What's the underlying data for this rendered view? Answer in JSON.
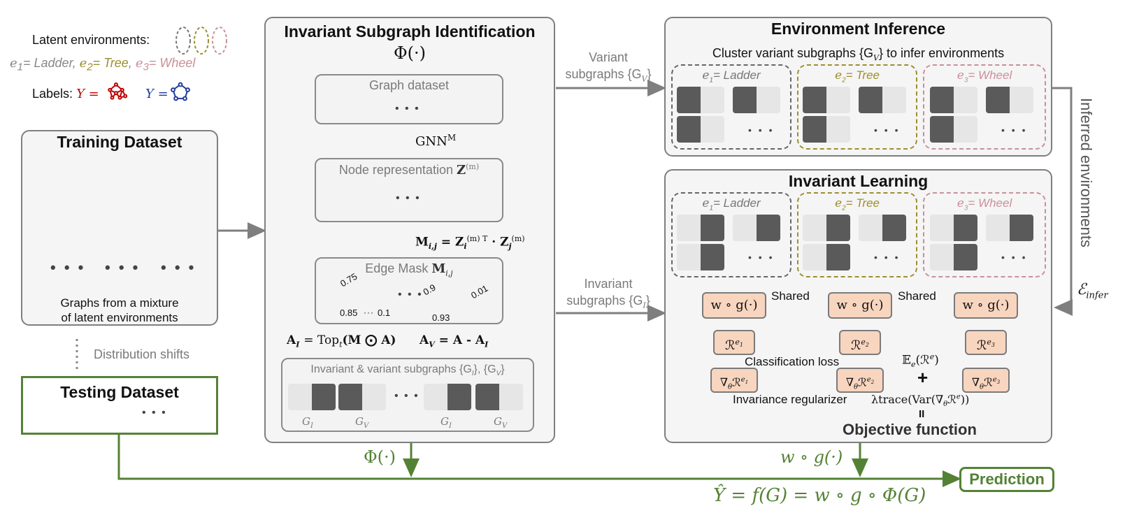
{
  "colors": {
    "red": "#c00000",
    "gray": "#888888",
    "blue": "#1f3c99",
    "olive": "#9c8f2e",
    "pink": "#c9909a",
    "green": "#548235",
    "box_fill": "#f8d5bf"
  },
  "legend": {
    "latent_label": "Latent environments:",
    "env1_var": "e",
    "env1_sub": "1",
    "env1_name": "= Ladder",
    "env2_var": "e",
    "env2_sub": "2",
    "env2_name": "= Tree",
    "env3_var": "e",
    "env3_sub": "3",
    "env3_name": "= Wheel",
    "env_sep": ",",
    "labels_label": "Labels:",
    "label_y1": "Y =",
    "label_y2": "Y ="
  },
  "training": {
    "title": "Training Dataset",
    "caption_line1": "Graphs from a mixture",
    "caption_line2": "of latent environments",
    "dots": "• • •"
  },
  "distribution_shifts": "Distribution shifts",
  "testing": {
    "title": "Testing Dataset",
    "dots": "• • •"
  },
  "isi": {
    "title": "Invariant Subgraph Identification",
    "phi": "Φ(·)",
    "graph_dataset": "Graph dataset",
    "gnn": "GNN",
    "gnn_sup": "M",
    "node_rep": "Node representation",
    "node_rep_sym": "Z",
    "node_rep_sup": "(m)",
    "mij_formula_left": "M",
    "mij_formula_sub": "i,j",
    "mij_formula_eq": "= Z",
    "mij_formula_sup1": "(m) T",
    "mij_formula_sub1": "i",
    "mij_formula_dot": "· Z",
    "mij_formula_sup2": "(m)",
    "mij_formula_sub2": "j",
    "edge_mask": "Edge Mask",
    "edge_mask_sym": "M",
    "edge_mask_sub": "i,j",
    "w075": "0.75",
    "w085": "0.85",
    "w01": "0.1",
    "w09": "0.9",
    "w001": "0.01",
    "w093": "0.93",
    "dots": "• • •",
    "ai_formula": "A",
    "ai_sub": "I",
    "ai_rest": "= Top",
    "ai_t": "t",
    "ai_arg": "(M ⨀ A)",
    "av_formula": "A",
    "av_sub": "V",
    "av_rest": "= A - A",
    "av_sub2": "I",
    "subgraphs_label": "Invariant & variant subgraphs {G",
    "subgraphs_i": "I",
    "subgraphs_mid": "}, {G",
    "subgraphs_v": "V",
    "subgraphs_end": "}",
    "gi_label": "G",
    "gi_sub": "I",
    "gv_label": "G",
    "gv_sub": "V",
    "phi_bottom": "Φ(·)"
  },
  "variant_arrow": {
    "line1": "Variant",
    "line2": "subgraphs {G",
    "sub": "V",
    "end": "}"
  },
  "invariant_arrow": {
    "line1": "Invariant",
    "line2": "subgraphs {G",
    "sub": "I",
    "end": "}"
  },
  "env_inference": {
    "title": "Environment Inference",
    "subtitle": "Cluster variant subgraphs {G",
    "subtitle_sub": "V",
    "subtitle_end": "} to infer environments",
    "env1": "= Ladder",
    "env2": "= Tree",
    "env3": "= Wheel",
    "dots": "• • •"
  },
  "inferred": {
    "text": "Inferred environments",
    "sym": "ℰ",
    "sub": "infer"
  },
  "inv_learning": {
    "title": "Invariant Learning",
    "env1": "= Ladder",
    "env2": "= Tree",
    "env3": "= Wheel",
    "dots": "• • •",
    "wg": "w ∘ g(·)",
    "shared1": "Shared",
    "shared2": "Shared",
    "risk": "ℛ",
    "risk_sup1": "e",
    "risk_sup_sub1": "1",
    "risk_sup_sub2": "2",
    "risk_sup_sub3": "3",
    "grad": "∇",
    "grad_sub": "θ",
    "classification_loss": "Classification loss",
    "expectation": "𝔼",
    "expectation_rest": "(ℛ",
    "expectation_end": ")",
    "plus": "+",
    "invariance_reg": "Invariance regularizer",
    "lambda_trace": "λtrace(Var(∇",
    "lambda_end": "ℛ",
    "lambda_close": "))",
    "equals": "II",
    "objective": "Objective function",
    "wg_bottom": "w ∘ g(·)"
  },
  "prediction": {
    "label": "Prediction",
    "formula": "Ŷ = f(G) = w ∘ g ∘ Φ(G)"
  }
}
